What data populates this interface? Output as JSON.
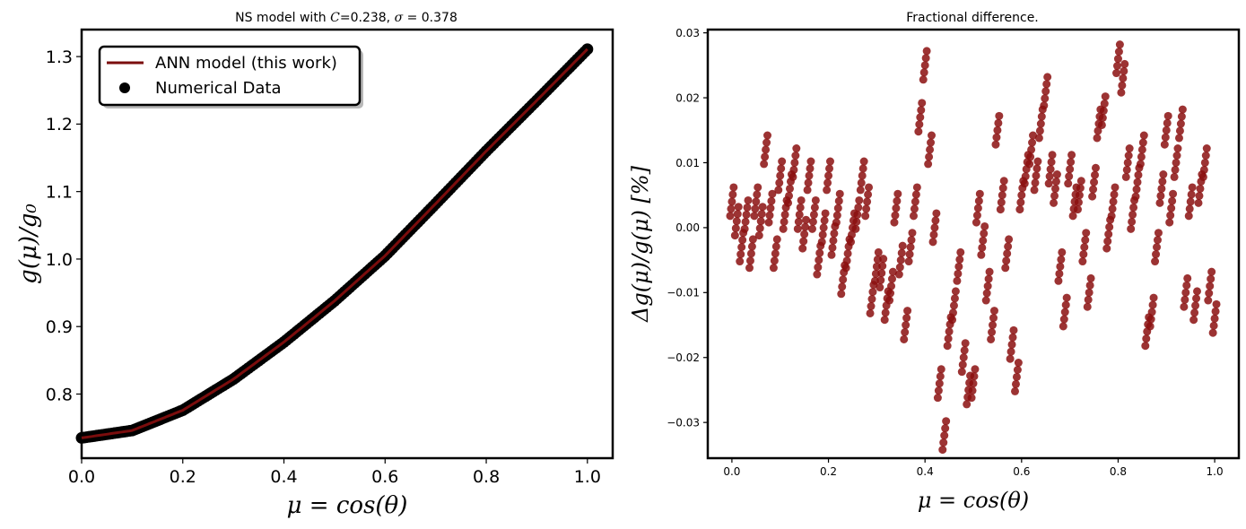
{
  "chart_data": [
    {
      "type": "line",
      "title": "NS model with C=0.238, σ = 0.378",
      "title_parts": {
        "prefix": "NS model with ",
        "c_symbol": "C",
        "c_value": "=0.238, ",
        "sigma_symbol": "σ",
        "sigma_value": " = 0.378"
      },
      "xlabel": "μ = cos(θ)",
      "ylabel": "g(μ)/g₀",
      "xlim": [
        0.0,
        1.05
      ],
      "ylim": [
        0.705,
        1.34
      ],
      "xticks": [
        "0.0",
        "0.2",
        "0.4",
        "0.6",
        "0.8",
        "1.0"
      ],
      "yticks": [
        "0.8",
        "0.9",
        "1.0",
        "1.1",
        "1.2",
        "1.3"
      ],
      "grid": false,
      "legend_position": "upper-left",
      "legend": [
        "ANN model (this work)",
        "Numerical Data"
      ],
      "series": [
        {
          "name": "ANN model (this work)",
          "kind": "line",
          "color": "#7b0d0d",
          "x": [
            0.0,
            0.1,
            0.2,
            0.3,
            0.4,
            0.5,
            0.6,
            0.7,
            0.8,
            0.9,
            1.0
          ],
          "y": [
            0.735,
            0.746,
            0.776,
            0.822,
            0.877,
            0.938,
            1.005,
            1.082,
            1.16,
            1.235,
            1.311
          ]
        },
        {
          "name": "Numerical Data",
          "kind": "scatter",
          "color": "#000000",
          "x": [
            0.0,
            0.1,
            0.2,
            0.3,
            0.4,
            0.5,
            0.6,
            0.7,
            0.8,
            0.9,
            1.0
          ],
          "y": [
            0.735,
            0.746,
            0.776,
            0.822,
            0.877,
            0.938,
            1.005,
            1.082,
            1.16,
            1.235,
            1.311
          ]
        }
      ]
    },
    {
      "type": "scatter",
      "title": "Fractional difference.",
      "xlabel": "μ = cos(θ)",
      "ylabel": "Δg(μ)/g(μ)  [%]",
      "xlim": [
        -0.05,
        1.05
      ],
      "ylim": [
        -0.0355,
        0.0305
      ],
      "xticks": [
        "0.0",
        "0.2",
        "0.4",
        "0.6",
        "0.8",
        "1.0"
      ],
      "yticks": [
        "−0.03",
        "−0.02",
        "−0.01",
        "0.00",
        "0.01",
        "0.02",
        "0.03"
      ],
      "grid": false,
      "series": [
        {
          "color": "#8b0f0f",
          "x": [
            0.0,
            0.01,
            0.02,
            0.03,
            0.04,
            0.05,
            0.06,
            0.07,
            0.08,
            0.09,
            0.1,
            0.11,
            0.12,
            0.13,
            0.14,
            0.15,
            0.16,
            0.17,
            0.18,
            0.19,
            0.2,
            0.21,
            0.22,
            0.23,
            0.24,
            0.25,
            0.26,
            0.27,
            0.28,
            0.29,
            0.3,
            0.31,
            0.32,
            0.33,
            0.34,
            0.35,
            0.36,
            0.37,
            0.38,
            0.39,
            0.4,
            0.41,
            0.42,
            0.43,
            0.44,
            0.45,
            0.46,
            0.47,
            0.48,
            0.49,
            0.5,
            0.51,
            0.52,
            0.53,
            0.54,
            0.55,
            0.56,
            0.57,
            0.58,
            0.59,
            0.6,
            0.61,
            0.62,
            0.63,
            0.64,
            0.65,
            0.66,
            0.67,
            0.68,
            0.69,
            0.7,
            0.71,
            0.72,
            0.73,
            0.74,
            0.75,
            0.76,
            0.77,
            0.78,
            0.79,
            0.8,
            0.81,
            0.82,
            0.83,
            0.84,
            0.85,
            0.86,
            0.87,
            0.88,
            0.89,
            0.9,
            0.91,
            0.92,
            0.93,
            0.94,
            0.95,
            0.96,
            0.97,
            0.98,
            0.99,
            1.0
          ],
          "y": [
            0.004,
            0.001,
            -0.003,
            0.002,
            -0.004,
            0.004,
            0.001,
            0.012,
            0.003,
            -0.004,
            0.008,
            0.002,
            0.006,
            0.01,
            0.002,
            -0.001,
            0.008,
            0.002,
            -0.005,
            0.0,
            0.008,
            -0.002,
            0.003,
            -0.008,
            -0.004,
            0.0,
            0.002,
            0.008,
            0.004,
            -0.011,
            -0.006,
            -0.007,
            -0.012,
            -0.009,
            0.003,
            -0.005,
            -0.015,
            -0.003,
            0.004,
            0.017,
            0.025,
            0.012,
            0.0,
            -0.024,
            -0.032,
            -0.016,
            -0.012,
            -0.006,
            -0.02,
            -0.025,
            -0.024,
            0.003,
            -0.002,
            -0.009,
            -0.015,
            0.015,
            0.005,
            -0.004,
            -0.018,
            -0.023,
            0.005,
            0.009,
            0.012,
            0.008,
            0.016,
            0.021,
            0.009,
            0.006,
            -0.006,
            -0.013,
            0.009,
            0.004,
            0.005,
            -0.003,
            -0.01,
            0.007,
            0.016,
            0.018,
            -0.001,
            0.004,
            0.026,
            0.023,
            0.01,
            0.002,
            0.007,
            0.012,
            -0.016,
            -0.013,
            -0.003,
            0.006,
            0.015,
            0.003,
            0.01,
            0.016,
            -0.01,
            0.004,
            -0.012,
            0.006,
            0.01,
            -0.009,
            -0.014
          ]
        }
      ]
    }
  ]
}
